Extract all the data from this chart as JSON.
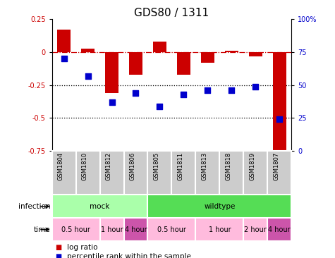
{
  "title": "GDS80 / 1311",
  "samples": [
    "GSM1804",
    "GSM1810",
    "GSM1812",
    "GSM1806",
    "GSM1805",
    "GSM1811",
    "GSM1813",
    "GSM1818",
    "GSM1819",
    "GSM1807"
  ],
  "log_ratio": [
    0.17,
    0.03,
    -0.31,
    -0.17,
    0.08,
    -0.17,
    -0.08,
    0.01,
    -0.03,
    -0.79
  ],
  "percentile": [
    70,
    57,
    37,
    44,
    34,
    43,
    46,
    46,
    49,
    24
  ],
  "bar_color": "#cc0000",
  "dot_color": "#0000cc",
  "ylim_left": [
    -0.75,
    0.25
  ],
  "ylim_right": [
    0,
    100
  ],
  "yticks_left": [
    -0.75,
    -0.5,
    -0.25,
    0,
    0.25
  ],
  "yticks_right": [
    0,
    25,
    50,
    75,
    100
  ],
  "hline_dotted": [
    -0.25,
    -0.5
  ],
  "infection_groups": [
    {
      "label": "mock",
      "start": 0,
      "end": 4,
      "color": "#aaffaa"
    },
    {
      "label": "wildtype",
      "start": 4,
      "end": 10,
      "color": "#55dd55"
    }
  ],
  "time_groups": [
    {
      "label": "0.5 hour",
      "start": 0,
      "end": 2,
      "color": "#ffbbdd"
    },
    {
      "label": "1 hour",
      "start": 2,
      "end": 3,
      "color": "#ffbbdd"
    },
    {
      "label": "4 hour",
      "start": 3,
      "end": 4,
      "color": "#cc55aa"
    },
    {
      "label": "0.5 hour",
      "start": 4,
      "end": 6,
      "color": "#ffbbdd"
    },
    {
      "label": "1 hour",
      "start": 6,
      "end": 8,
      "color": "#ffbbdd"
    },
    {
      "label": "2 hour",
      "start": 8,
      "end": 9,
      "color": "#ffbbdd"
    },
    {
      "label": "4 hour",
      "start": 9,
      "end": 10,
      "color": "#cc55aa"
    }
  ],
  "legend_items": [
    {
      "color": "#cc0000",
      "label": "log ratio"
    },
    {
      "color": "#0000cc",
      "label": "percentile rank within the sample"
    }
  ],
  "bar_width": 0.55,
  "dot_size": 35,
  "label_bg": "#cccccc",
  "title_fontsize": 11,
  "tick_fontsize": 7,
  "sample_fontsize": 6,
  "row_fontsize": 7.5,
  "legend_fontsize": 7.5
}
